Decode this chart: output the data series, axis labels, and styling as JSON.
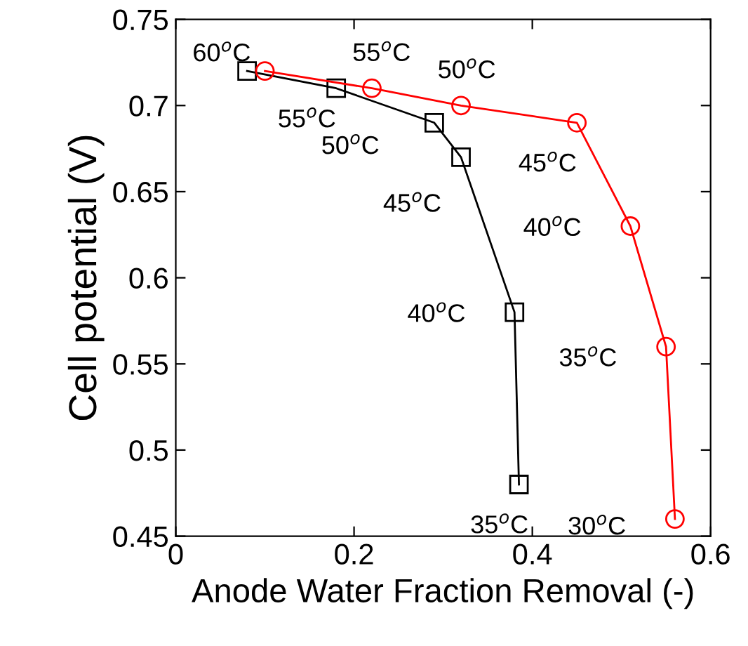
{
  "chart_data": {
    "type": "line",
    "xlabel": "Anode Water Fraction Removal (-)",
    "ylabel": "Cell potential (V)",
    "xlim": [
      0,
      0.6
    ],
    "xticks": [
      0,
      0.2,
      0.4,
      0.6
    ],
    "ylim": [
      0.45,
      0.75
    ],
    "yticks": [
      0.45,
      0.5,
      0.55,
      0.6,
      0.65,
      0.7,
      0.75
    ],
    "grid": false,
    "legend": false,
    "series": [
      {
        "color": "#000000",
        "marker": "square",
        "x": [
          0.08,
          0.18,
          0.29,
          0.32,
          0.38,
          0.385
        ],
        "values": [
          0.72,
          0.71,
          0.69,
          0.67,
          0.58,
          0.48
        ]
      },
      {
        "color": "#ff0000",
        "marker": "circle",
        "x": [
          0.1,
          0.22,
          0.32,
          0.45,
          0.51,
          0.55,
          0.56
        ],
        "values": [
          0.72,
          0.71,
          0.7,
          0.69,
          0.63,
          0.56,
          0.46
        ]
      }
    ],
    "annotations": [
      {
        "text": "60$^{o}$C",
        "x": 0.08,
        "y": 0.72
      },
      {
        "text": "55$^{o}$C",
        "x": 0.22,
        "y": 0.71
      },
      {
        "text": "55$^{o}$C",
        "x": 0.18,
        "y": 0.71
      },
      {
        "text": "50$^{o}$C",
        "x": 0.32,
        "y": 0.7
      },
      {
        "text": "50$^{o}$C",
        "x": 0.29,
        "y": 0.69
      },
      {
        "text": "45$^{o}$C",
        "x": 0.45,
        "y": 0.69
      },
      {
        "text": "45$^{o}$C",
        "x": 0.32,
        "y": 0.67
      },
      {
        "text": "40$^{o}$C",
        "x": 0.51,
        "y": 0.63
      },
      {
        "text": "40$^{o}$C",
        "x": 0.38,
        "y": 0.58
      },
      {
        "text": "35$^{o}$C",
        "x": 0.55,
        "y": 0.56
      },
      {
        "text": "35$^{o}$C",
        "x": 0.385,
        "y": 0.48
      },
      {
        "text": "30$^{o}$C",
        "x": 0.56,
        "y": 0.46
      }
    ]
  }
}
